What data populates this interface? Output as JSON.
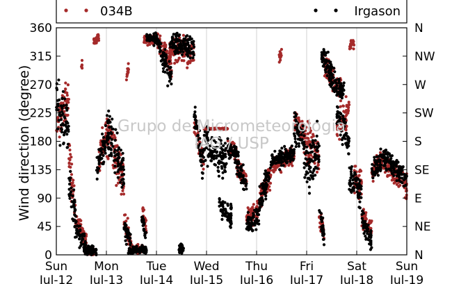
{
  "chart_data": {
    "type": "scatter",
    "ylabel": "Wind direction (degree)",
    "ylim": [
      0,
      360
    ],
    "y_ticks": [
      "0",
      "45",
      "90",
      "135",
      "180",
      "225",
      "270",
      "315",
      "360"
    ],
    "y_tick_values": [
      0,
      45,
      90,
      135,
      180,
      225,
      270,
      315,
      360
    ],
    "right_ticks": [
      "N",
      "NE",
      "E",
      "SE",
      "S",
      "SW",
      "W",
      "NW",
      "N"
    ],
    "xlim_days": [
      0,
      7
    ],
    "x_ticks": [
      {
        "day": "Sun",
        "date": "Jul-12"
      },
      {
        "day": "Mon",
        "date": "Jul-13"
      },
      {
        "day": "Tue",
        "date": "Jul-14"
      },
      {
        "day": "Wed",
        "date": "Jul-15"
      },
      {
        "day": "Thu",
        "date": "Jul-16"
      },
      {
        "day": "Fri",
        "date": "Jul-17"
      },
      {
        "day": "Sat",
        "date": "Jul-18"
      },
      {
        "day": "Sun",
        "date": "Jul-19"
      }
    ],
    "grid": "vertical",
    "legend_placement": "top",
    "watermark": [
      "Grupo de Micrometeorologia",
      "IAG / USP"
    ],
    "series": [
      {
        "name": "034B",
        "color": "#a52a2a",
        "segments": [
          {
            "x0": 0.0,
            "x1": 0.25,
            "c0": 210,
            "c1": 250,
            "spread": 55
          },
          {
            "x0": 0.25,
            "x1": 0.4,
            "c0": 150,
            "c1": 60,
            "spread": 45
          },
          {
            "x0": 0.4,
            "x1": 0.6,
            "c0": 60,
            "c1": 20,
            "spread": 20
          },
          {
            "x0": 0.5,
            "x1": 0.52,
            "c0": 300,
            "c1": 300,
            "spread": 15
          },
          {
            "x0": 0.55,
            "x1": 0.75,
            "c0": 10,
            "c1": 5,
            "spread": 12
          },
          {
            "x0": 0.75,
            "x1": 0.85,
            "c0": 340,
            "c1": 345,
            "spread": 10
          },
          {
            "x0": 0.85,
            "x1": 1.0,
            "c0": 150,
            "c1": 190,
            "spread": 45
          },
          {
            "x0": 1.0,
            "x1": 1.35,
            "c0": 200,
            "c1": 120,
            "spread": 50
          },
          {
            "x0": 1.35,
            "x1": 1.5,
            "c0": 60,
            "c1": 10,
            "spread": 30
          },
          {
            "x0": 1.4,
            "x1": 1.45,
            "c0": 280,
            "c1": 300,
            "spread": 10
          },
          {
            "x0": 1.5,
            "x1": 1.75,
            "c0": 8,
            "c1": 10,
            "spread": 10
          },
          {
            "x0": 1.72,
            "x1": 1.8,
            "c0": 70,
            "c1": 40,
            "spread": 20
          },
          {
            "x0": 1.75,
            "x1": 2.0,
            "c0": 342,
            "c1": 338,
            "spread": 12
          },
          {
            "x0": 2.0,
            "x1": 2.3,
            "c0": 345,
            "c1": 300,
            "spread": 25
          },
          {
            "x0": 2.25,
            "x1": 2.75,
            "c0": 330,
            "c1": 320,
            "spread": 28
          },
          {
            "x0": 2.75,
            "x1": 2.95,
            "c0": 220,
            "c1": 140,
            "spread": 30
          },
          {
            "x0": 2.95,
            "x1": 3.42,
            "c0": 200,
            "c1": 200,
            "spread": 1.5
          },
          {
            "x0": 3.42,
            "x1": 3.6,
            "c0": 170,
            "c1": 160,
            "spread": 20
          },
          {
            "x0": 3.6,
            "x1": 3.8,
            "c0": 140,
            "c1": 120,
            "spread": 20
          },
          {
            "x0": 3.8,
            "x1": 4.05,
            "c0": 60,
            "c1": 70,
            "spread": 22
          },
          {
            "x0": 4.05,
            "x1": 4.3,
            "c0": 90,
            "c1": 130,
            "spread": 25
          },
          {
            "x0": 4.45,
            "x1": 4.5,
            "c0": 310,
            "c1": 320,
            "spread": 12
          },
          {
            "x0": 4.3,
            "x1": 4.75,
            "c0": 140,
            "c1": 160,
            "spread": 20
          },
          {
            "x0": 4.75,
            "x1": 4.95,
            "c0": 210,
            "c1": 190,
            "spread": 25
          },
          {
            "x0": 4.95,
            "x1": 5.25,
            "c0": 180,
            "c1": 160,
            "spread": 45
          },
          {
            "x0": 5.25,
            "x1": 5.35,
            "c0": 60,
            "c1": 40,
            "spread": 25
          },
          {
            "x0": 5.35,
            "x1": 5.7,
            "c0": 300,
            "c1": 260,
            "spread": 25
          },
          {
            "x0": 5.6,
            "x1": 5.85,
            "c0": 200,
            "c1": 230,
            "spread": 40
          },
          {
            "x0": 5.85,
            "x1": 5.95,
            "c0": 330,
            "c1": 340,
            "spread": 15
          },
          {
            "x0": 5.95,
            "x1": 6.1,
            "c0": 120,
            "c1": 110,
            "spread": 40
          },
          {
            "x0": 6.1,
            "x1": 6.3,
            "c0": 60,
            "c1": 40,
            "spread": 25
          },
          {
            "x0": 6.3,
            "x1": 6.5,
            "c0": 130,
            "c1": 150,
            "spread": 25
          },
          {
            "x0": 6.5,
            "x1": 7.0,
            "c0": 150,
            "c1": 110,
            "spread": 25
          }
        ]
      },
      {
        "name": "Irgason",
        "color": "#000000",
        "segments": [
          {
            "x0": 0.0,
            "x1": 0.25,
            "c0": 230,
            "c1": 200,
            "spread": 70
          },
          {
            "x0": 0.25,
            "x1": 0.4,
            "c0": 120,
            "c1": 50,
            "spread": 45
          },
          {
            "x0": 0.4,
            "x1": 0.6,
            "c0": 40,
            "c1": 10,
            "spread": 20
          },
          {
            "x0": 0.55,
            "x1": 0.8,
            "c0": 10,
            "c1": 5,
            "spread": 10
          },
          {
            "x0": 0.8,
            "x1": 1.0,
            "c0": 140,
            "c1": 180,
            "spread": 40
          },
          {
            "x0": 1.0,
            "x1": 1.35,
            "c0": 200,
            "c1": 130,
            "spread": 50
          },
          {
            "x0": 1.35,
            "x1": 1.5,
            "c0": 50,
            "c1": 10,
            "spread": 30
          },
          {
            "x0": 1.45,
            "x1": 1.8,
            "c0": 8,
            "c1": 8,
            "spread": 10
          },
          {
            "x0": 1.7,
            "x1": 1.8,
            "c0": 60,
            "c1": 30,
            "spread": 20
          },
          {
            "x0": 1.8,
            "x1": 2.05,
            "c0": 345,
            "c1": 340,
            "spread": 12
          },
          {
            "x0": 2.05,
            "x1": 2.3,
            "c0": 330,
            "c1": 280,
            "spread": 30
          },
          {
            "x0": 2.25,
            "x1": 2.75,
            "c0": 335,
            "c1": 330,
            "spread": 25
          },
          {
            "x0": 2.45,
            "x1": 2.55,
            "c0": 10,
            "c1": 10,
            "spread": 10
          },
          {
            "x0": 2.75,
            "x1": 2.95,
            "c0": 230,
            "c1": 130,
            "spread": 40
          },
          {
            "x0": 2.95,
            "x1": 3.4,
            "c0": 180,
            "c1": 150,
            "spread": 45
          },
          {
            "x0": 3.25,
            "x1": 3.5,
            "c0": 80,
            "c1": 60,
            "spread": 25
          },
          {
            "x0": 3.42,
            "x1": 3.6,
            "c0": 170,
            "c1": 160,
            "spread": 20
          },
          {
            "x0": 3.6,
            "x1": 3.8,
            "c0": 150,
            "c1": 110,
            "spread": 25
          },
          {
            "x0": 3.8,
            "x1": 4.05,
            "c0": 50,
            "c1": 60,
            "spread": 25
          },
          {
            "x0": 4.05,
            "x1": 4.3,
            "c0": 80,
            "c1": 140,
            "spread": 30
          },
          {
            "x0": 4.3,
            "x1": 4.75,
            "c0": 150,
            "c1": 160,
            "spread": 20
          },
          {
            "x0": 4.75,
            "x1": 4.95,
            "c0": 200,
            "c1": 180,
            "spread": 35
          },
          {
            "x0": 4.95,
            "x1": 5.25,
            "c0": 140,
            "c1": 160,
            "spread": 60
          },
          {
            "x0": 5.25,
            "x1": 5.35,
            "c0": 70,
            "c1": 30,
            "spread": 25
          },
          {
            "x0": 5.3,
            "x1": 5.5,
            "c0": 320,
            "c1": 290,
            "spread": 25
          },
          {
            "x0": 5.45,
            "x1": 5.75,
            "c0": 280,
            "c1": 260,
            "spread": 25
          },
          {
            "x0": 5.6,
            "x1": 5.85,
            "c0": 220,
            "c1": 180,
            "spread": 35
          },
          {
            "x0": 5.85,
            "x1": 6.1,
            "c0": 120,
            "c1": 100,
            "spread": 35
          },
          {
            "x0": 6.1,
            "x1": 6.3,
            "c0": 60,
            "c1": 20,
            "spread": 25
          },
          {
            "x0": 6.3,
            "x1": 6.5,
            "c0": 130,
            "c1": 150,
            "spread": 25
          },
          {
            "x0": 6.5,
            "x1": 7.0,
            "c0": 160,
            "c1": 120,
            "spread": 25
          }
        ]
      }
    ]
  }
}
